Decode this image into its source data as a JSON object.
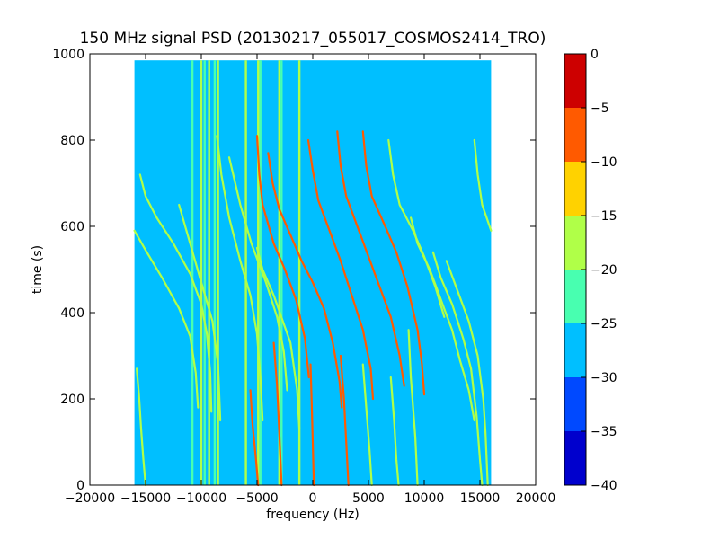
{
  "chart_data": {
    "type": "heatmap",
    "title": "150 MHz signal PSD (20130217_055017_COSMOS2414_TRO)",
    "xlabel": "frequency (Hz)",
    "ylabel": "time (s)",
    "xlim": [
      -20000,
      20000
    ],
    "ylim": [
      0,
      1000
    ],
    "x_ticks": [
      -20000,
      -15000,
      -10000,
      -5000,
      0,
      5000,
      10000,
      15000,
      20000
    ],
    "x_tick_labels": [
      "−20000",
      "−15000",
      "−10000",
      "−5000",
      "0",
      "5000",
      "10000",
      "15000",
      "20000"
    ],
    "y_ticks": [
      0,
      200,
      400,
      600,
      800,
      1000
    ],
    "y_tick_labels": [
      "0",
      "200",
      "400",
      "600",
      "800",
      "1000"
    ],
    "data_extent": {
      "x": [
        -16000,
        16000
      ],
      "y": [
        0,
        985
      ]
    },
    "background_level": -27.5,
    "colorbar": {
      "range": [
        -40,
        0
      ],
      "levels": [
        -40,
        -35,
        -30,
        -25,
        -20,
        -15,
        -10,
        -5,
        0
      ],
      "tick_labels": [
        "0",
        "−5",
        "−10",
        "−15",
        "−20",
        "−25",
        "−30",
        "−35",
        "−40"
      ],
      "tick_values": [
        0,
        -5,
        -10,
        -15,
        -20,
        -25,
        -30,
        -35,
        -40
      ],
      "colors": [
        "#0000cd",
        "#0049ff",
        "#00bfff",
        "#48ffb0",
        "#b0ff48",
        "#ffd200",
        "#ff5a00",
        "#cd0000"
      ]
    },
    "vertical_lines": [
      {
        "x": -10800,
        "level": -22.5
      },
      {
        "x": -10000,
        "level": -17.5
      },
      {
        "x": -9700,
        "level": -22.5
      },
      {
        "x": -9300,
        "level": -17.5
      },
      {
        "x": -8800,
        "level": -22.5
      },
      {
        "x": -8500,
        "level": -17.5
      },
      {
        "x": -6000,
        "level": -17.5
      },
      {
        "x": -4900,
        "level": -17.5
      },
      {
        "x": -4700,
        "level": -22.5
      },
      {
        "x": -3000,
        "level": -17.5
      },
      {
        "x": -2800,
        "level": -22.5
      },
      {
        "x": -1200,
        "level": -17.5
      }
    ],
    "series": [
      {
        "points": [
          [
            -16000,
            590
          ],
          [
            -15000,
            545
          ],
          [
            -13500,
            480
          ],
          [
            -12000,
            410
          ],
          [
            -11000,
            345
          ],
          [
            -10500,
            260
          ],
          [
            -10300,
            180
          ]
        ],
        "level": -17.5
      },
      {
        "points": [
          [
            -15500,
            720
          ],
          [
            -15000,
            670
          ],
          [
            -14000,
            620
          ],
          [
            -12500,
            560
          ],
          [
            -11000,
            490
          ],
          [
            -10000,
            420
          ],
          [
            -9500,
            350
          ],
          [
            -9200,
            260
          ],
          [
            -9100,
            170
          ]
        ],
        "level": -17.5
      },
      {
        "points": [
          [
            -15800,
            270
          ],
          [
            -15600,
            210
          ],
          [
            -15400,
            130
          ],
          [
            -15200,
            60
          ],
          [
            -15000,
            0
          ]
        ],
        "level": -17.5
      },
      {
        "points": [
          [
            -12000,
            650
          ],
          [
            -11000,
            560
          ],
          [
            -10000,
            470
          ],
          [
            -9000,
            380
          ],
          [
            -8500,
            280
          ],
          [
            -8300,
            150
          ]
        ],
        "level": -17.5
      },
      {
        "points": [
          [
            -8600,
            810
          ],
          [
            -8200,
            720
          ],
          [
            -7500,
            620
          ],
          [
            -6500,
            520
          ],
          [
            -5600,
            440
          ],
          [
            -5000,
            350
          ],
          [
            -4700,
            250
          ],
          [
            -4500,
            150
          ]
        ],
        "level": -17.5
      },
      {
        "points": [
          [
            -7500,
            760
          ],
          [
            -6500,
            650
          ],
          [
            -5500,
            560
          ],
          [
            -4200,
            470
          ],
          [
            -3200,
            390
          ],
          [
            -2600,
            310
          ],
          [
            -2300,
            220
          ]
        ],
        "level": -17.5
      },
      {
        "points": [
          [
            -5600,
            220
          ],
          [
            -5400,
            140
          ],
          [
            -5100,
            60
          ],
          [
            -4900,
            0
          ]
        ],
        "level": -7.5
      },
      {
        "points": [
          [
            -5000,
            810
          ],
          [
            -4800,
            720
          ],
          [
            -4500,
            650
          ],
          [
            -3500,
            560
          ],
          [
            -2500,
            500
          ],
          [
            -1500,
            430
          ],
          [
            -700,
            340
          ],
          [
            -350,
            250
          ]
        ],
        "level": -7.5
      },
      {
        "points": [
          [
            -4000,
            770
          ],
          [
            -3600,
            700
          ],
          [
            -3000,
            640
          ],
          [
            -2000,
            580
          ],
          [
            -1000,
            520
          ],
          [
            0,
            470
          ],
          [
            1000,
            410
          ],
          [
            1800,
            330
          ],
          [
            2400,
            240
          ],
          [
            2600,
            180
          ]
        ],
        "level": -7.5
      },
      {
        "points": [
          [
            -5000,
            550
          ],
          [
            -4500,
            500
          ],
          [
            -3500,
            440
          ],
          [
            -2000,
            330
          ],
          [
            -1400,
            220
          ],
          [
            -1200,
            130
          ]
        ],
        "level": -17.5
      },
      {
        "points": [
          [
            -3500,
            330
          ],
          [
            -3200,
            230
          ],
          [
            -3000,
            120
          ],
          [
            -2800,
            0
          ]
        ],
        "level": -7.5
      },
      {
        "points": [
          [
            -200,
            280
          ],
          [
            -100,
            190
          ],
          [
            0,
            100
          ],
          [
            100,
            0
          ]
        ],
        "level": -7.5
      },
      {
        "points": [
          [
            -400,
            800
          ],
          [
            0,
            730
          ],
          [
            500,
            660
          ],
          [
            1500,
            590
          ],
          [
            2500,
            520
          ],
          [
            3500,
            440
          ],
          [
            4500,
            360
          ],
          [
            5200,
            270
          ],
          [
            5400,
            200
          ]
        ],
        "level": -7.5
      },
      {
        "points": [
          [
            2200,
            820
          ],
          [
            2500,
            740
          ],
          [
            3000,
            670
          ],
          [
            4000,
            600
          ],
          [
            5000,
            530
          ],
          [
            6000,
            460
          ],
          [
            7000,
            390
          ],
          [
            7800,
            300
          ],
          [
            8200,
            230
          ]
        ],
        "level": -7.5
      },
      {
        "points": [
          [
            4500,
            820
          ],
          [
            4800,
            740
          ],
          [
            5300,
            670
          ],
          [
            6500,
            600
          ],
          [
            7500,
            540
          ],
          [
            8500,
            460
          ],
          [
            9400,
            360
          ],
          [
            9800,
            280
          ],
          [
            10000,
            210
          ]
        ],
        "level": -7.5
      },
      {
        "points": [
          [
            6800,
            800
          ],
          [
            7200,
            720
          ],
          [
            7800,
            650
          ],
          [
            9000,
            590
          ],
          [
            10000,
            530
          ],
          [
            11000,
            460
          ],
          [
            11800,
            390
          ]
        ],
        "level": -17.5
      },
      {
        "points": [
          [
            8800,
            620
          ],
          [
            9400,
            560
          ],
          [
            10500,
            500
          ],
          [
            11500,
            430
          ],
          [
            12500,
            360
          ],
          [
            13200,
            290
          ],
          [
            14000,
            220
          ],
          [
            14500,
            150
          ]
        ],
        "level": -17.5
      },
      {
        "points": [
          [
            14500,
            800
          ],
          [
            14800,
            720
          ],
          [
            15200,
            650
          ],
          [
            16000,
            590
          ]
        ],
        "level": -17.5
      },
      {
        "points": [
          [
            2500,
            300
          ],
          [
            2800,
            200
          ],
          [
            3000,
            100
          ],
          [
            3200,
            0
          ]
        ],
        "level": -7.5
      },
      {
        "points": [
          [
            4500,
            280
          ],
          [
            4800,
            180
          ],
          [
            5100,
            80
          ],
          [
            5300,
            0
          ]
        ],
        "level": -17.5
      },
      {
        "points": [
          [
            7000,
            250
          ],
          [
            7300,
            150
          ],
          [
            7500,
            60
          ],
          [
            7700,
            0
          ]
        ],
        "level": -17.5
      },
      {
        "points": [
          [
            8600,
            360
          ],
          [
            8800,
            250
          ],
          [
            9200,
            110
          ],
          [
            9400,
            0
          ]
        ],
        "level": -17.5
      },
      {
        "points": [
          [
            10800,
            540
          ],
          [
            11500,
            480
          ],
          [
            12500,
            420
          ],
          [
            13500,
            340
          ],
          [
            14200,
            270
          ],
          [
            14700,
            160
          ],
          [
            15000,
            60
          ],
          [
            15200,
            0
          ]
        ],
        "level": -17.5
      },
      {
        "points": [
          [
            12000,
            520
          ],
          [
            13000,
            450
          ],
          [
            14000,
            380
          ],
          [
            14800,
            300
          ],
          [
            15300,
            200
          ],
          [
            15500,
            120
          ],
          [
            15700,
            0
          ]
        ],
        "level": -17.5
      }
    ]
  }
}
